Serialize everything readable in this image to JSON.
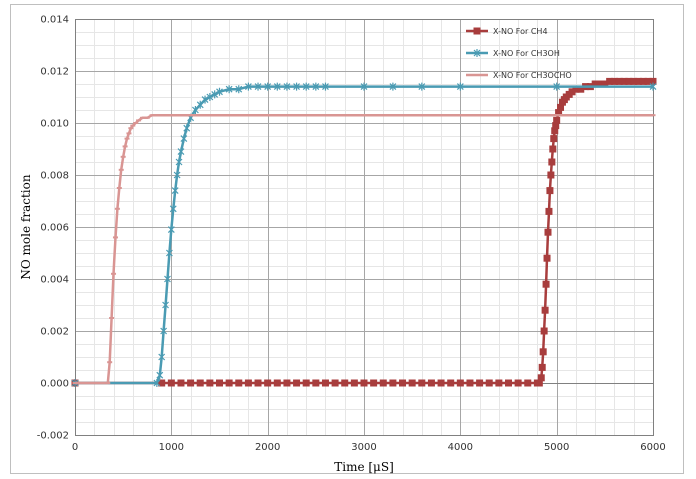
{
  "chart_data": {
    "type": "line",
    "xlabel": "Time [μS]",
    "ylabel": "NO mole fraction",
    "xlim": [
      0,
      6000
    ],
    "ylim": [
      -0.002,
      0.014
    ],
    "x_ticks": [
      "0",
      "1000",
      "2000",
      "3000",
      "4000",
      "5000",
      "6000"
    ],
    "y_ticks": [
      "-0.002",
      "0.000",
      "0.002",
      "0.004",
      "0.006",
      "0.008",
      "0.010",
      "0.012",
      "0.014"
    ],
    "grid": true,
    "minor_grid_x": 200,
    "minor_grid_y": 0.0005,
    "legend_position": "top-right",
    "series": [
      {
        "name": "X-NO For CH4",
        "color": "#a83d3d",
        "marker": "square",
        "x": [
          0,
          900,
          1000,
          1100,
          1200,
          1300,
          1400,
          1500,
          1600,
          1700,
          1800,
          1900,
          2000,
          2100,
          2200,
          2300,
          2400,
          2500,
          2600,
          2700,
          2800,
          2900,
          3000,
          3100,
          3200,
          3300,
          3400,
          3500,
          3600,
          3700,
          3800,
          3900,
          4000,
          4100,
          4200,
          4300,
          4400,
          4500,
          4600,
          4700,
          4800,
          4820,
          4840,
          4850,
          4860,
          4870,
          4880,
          4890,
          4900,
          4910,
          4920,
          4930,
          4940,
          4950,
          4960,
          4970,
          4980,
          4990,
          5000,
          5020,
          5040,
          5060,
          5080,
          5100,
          5130,
          5160,
          5200,
          5250,
          5300,
          5350,
          5400,
          5450,
          5500,
          5550,
          5600,
          5650,
          5700,
          5750,
          5800,
          5850,
          5900,
          5950,
          6000
        ],
        "y": [
          0.0,
          0.0,
          0.0,
          0.0,
          0.0,
          0.0,
          0.0,
          0.0,
          0.0,
          0.0,
          0.0,
          0.0,
          0.0,
          0.0,
          0.0,
          0.0,
          0.0,
          0.0,
          0.0,
          0.0,
          0.0,
          0.0,
          0.0,
          0.0,
          0.0,
          0.0,
          0.0,
          0.0,
          0.0,
          0.0,
          0.0,
          0.0,
          0.0,
          0.0,
          0.0,
          0.0,
          0.0,
          0.0,
          0.0,
          0.0,
          0.0,
          0.0,
          0.0002,
          0.0006,
          0.0012,
          0.002,
          0.0028,
          0.0038,
          0.0048,
          0.0058,
          0.0066,
          0.0074,
          0.008,
          0.0085,
          0.009,
          0.0094,
          0.0097,
          0.0099,
          0.0101,
          0.0104,
          0.0106,
          0.0108,
          0.0109,
          0.011,
          0.0111,
          0.0112,
          0.0113,
          0.0113,
          0.0114,
          0.0114,
          0.0115,
          0.0115,
          0.0115,
          0.0116,
          0.0116,
          0.0116,
          0.0116,
          0.0116,
          0.0116,
          0.0116,
          0.0116,
          0.0116,
          0.0116
        ]
      },
      {
        "name": "X-NO For CH3OH",
        "color": "#4a9bb3",
        "marker": "star",
        "x": [
          0,
          850,
          880,
          900,
          920,
          940,
          960,
          980,
          1000,
          1020,
          1040,
          1060,
          1080,
          1100,
          1130,
          1160,
          1200,
          1250,
          1300,
          1350,
          1400,
          1450,
          1500,
          1600,
          1700,
          1800,
          1900,
          2000,
          2100,
          2200,
          2300,
          2400,
          2500,
          2600,
          3000,
          3300,
          3600,
          4000,
          5000,
          6000
        ],
        "y": [
          0.0,
          0.0,
          0.0003,
          0.001,
          0.002,
          0.003,
          0.004,
          0.005,
          0.0059,
          0.0067,
          0.0074,
          0.008,
          0.0085,
          0.0089,
          0.0094,
          0.0098,
          0.0102,
          0.0105,
          0.0107,
          0.0109,
          0.011,
          0.0111,
          0.0112,
          0.0113,
          0.0113,
          0.0114,
          0.0114,
          0.0114,
          0.0114,
          0.0114,
          0.0114,
          0.0114,
          0.0114,
          0.0114,
          0.0114,
          0.0114,
          0.0114,
          0.0114,
          0.0114,
          0.0114
        ]
      },
      {
        "name": "X-NO For CH3OCHO",
        "color": "#d99593",
        "marker": "dash",
        "x": [
          0,
          340,
          360,
          380,
          400,
          420,
          440,
          460,
          480,
          500,
          520,
          540,
          560,
          580,
          600,
          630,
          660,
          700,
          750,
          800,
          850,
          900,
          1000,
          1200,
          1500,
          2000,
          3000,
          4000,
          5000,
          6000
        ],
        "y": [
          0.0,
          0.0,
          0.0008,
          0.0025,
          0.0042,
          0.0056,
          0.0067,
          0.0075,
          0.0082,
          0.0087,
          0.0091,
          0.0094,
          0.0096,
          0.0098,
          0.0099,
          0.01,
          0.0101,
          0.0102,
          0.0102,
          0.0103,
          0.0103,
          0.0103,
          0.0103,
          0.0103,
          0.0103,
          0.0103,
          0.0103,
          0.0103,
          0.0103,
          0.0103
        ]
      }
    ]
  }
}
